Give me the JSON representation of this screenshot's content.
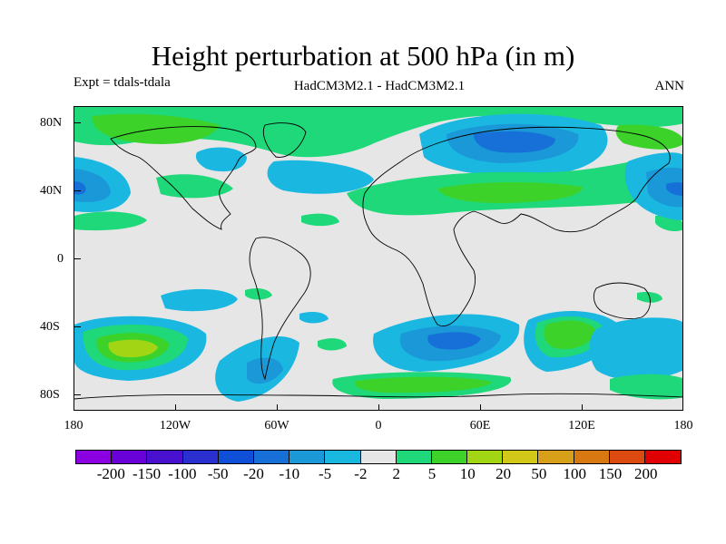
{
  "title": "Height perturbation at 500 hPa (in m)",
  "expt_label": "Expt = tdals-tdala",
  "model_label": "HadCM3M2.1 - HadCM3M2.1",
  "period_label": "ANN",
  "map": {
    "type": "filled-contour world map",
    "projection": "cylindrical equidistant",
    "background_color": "#e6e6e6",
    "lat_ticks": [
      "80N",
      "40N",
      "0",
      "40S",
      "80S"
    ],
    "lon_ticks": [
      "180",
      "120W",
      "60W",
      "0",
      "60E",
      "120E",
      "180"
    ]
  },
  "colorbar": {
    "labels": [
      "-200",
      "-150",
      "-100",
      "-50",
      "-20",
      "-10",
      "-5",
      "-2",
      "2",
      "5",
      "10",
      "20",
      "50",
      "100",
      "150",
      "200"
    ],
    "colors": [
      "#8a00e0",
      "#6a00d8",
      "#4a10d0",
      "#2a30d0",
      "#1050d8",
      "#1670d8",
      "#1a98d8",
      "#1ab8e0",
      "#e6e6e6",
      "#1ed87a",
      "#3cd22a",
      "#a2d614",
      "#d2c81a",
      "#d8a018",
      "#d87810",
      "#dc4a10",
      "#e00000"
    ]
  }
}
